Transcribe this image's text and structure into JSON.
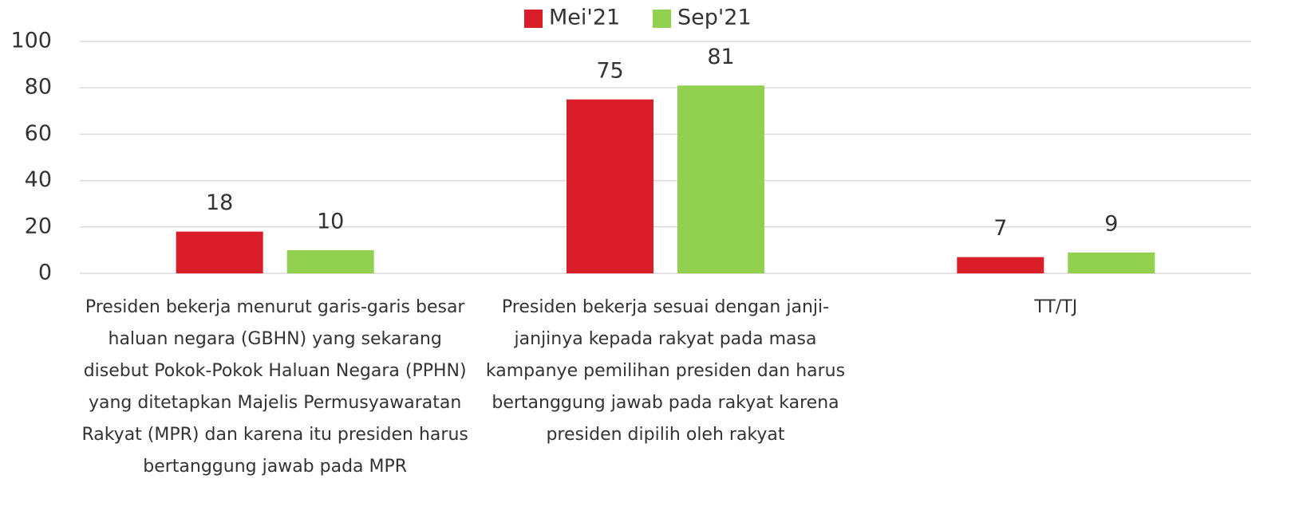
{
  "chart_data": {
    "type": "bar",
    "categories": [
      "Presiden bekerja menurut garis-garis besar haluan negara (GBHN) yang sekarang disebut Pokok-Pokok Haluan Negara (PPHN) yang ditetapkan Majelis Permusyawaratan Rakyat (MPR) dan karena itu presiden harus bertanggung jawab pada MPR",
      "Presiden bekerja sesuai dengan janji-janjinya kepada rakyat pada masa kampanye pemilihan presiden dan harus bertanggung jawab pada rakyat karena presiden dipilih oleh rakyat",
      "TT/TJ"
    ],
    "series": [
      {
        "name": "Mei'21",
        "color": "#d91e2a",
        "values": [
          18,
          75,
          7
        ]
      },
      {
        "name": "Sep'21",
        "color": "#92d050",
        "values": [
          10,
          81,
          9
        ]
      }
    ],
    "ylim": [
      0,
      100
    ],
    "yticks": [
      0,
      20,
      40,
      60,
      80,
      100
    ],
    "grid": true,
    "legend": "top"
  }
}
